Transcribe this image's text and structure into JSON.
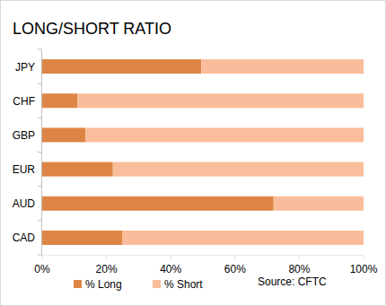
{
  "chart_data": {
    "type": "bar",
    "title": "LONG/SHORT RATIO",
    "orientation": "horizontal",
    "stacked": true,
    "grid": false,
    "legend": "bottom",
    "categories": [
      "JPY",
      "CHF",
      "GBP",
      "EUR",
      "AUD",
      "CAD"
    ],
    "series": [
      {
        "name": "% Long",
        "color": "#de8545",
        "values": [
          49.5,
          11,
          13.5,
          22,
          72,
          25
        ]
      },
      {
        "name": "% Short",
        "color": "#f9bd9b",
        "values": [
          50.5,
          89,
          86.5,
          78,
          28,
          75
        ]
      }
    ],
    "xlim": [
      0,
      100
    ],
    "xticks": [
      {
        "value": 0,
        "label": "0%"
      },
      {
        "value": 20,
        "label": "20%"
      },
      {
        "value": 40,
        "label": "40%"
      },
      {
        "value": 60,
        "label": "60%"
      },
      {
        "value": 80,
        "label": "80%"
      },
      {
        "value": 100,
        "label": "100%"
      }
    ],
    "annotations": [
      "Source: CFTC"
    ]
  }
}
